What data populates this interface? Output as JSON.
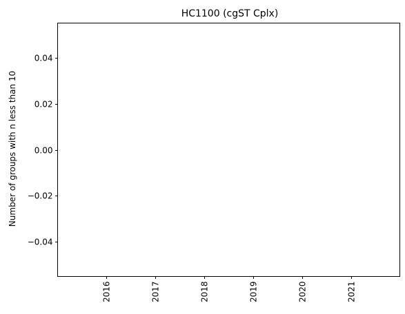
{
  "chart_data": {
    "type": "bar",
    "title": "HC1100 (cgST Cplx)",
    "xlabel": "",
    "ylabel": "Number of groups with n less than 10",
    "categories": [
      "2016",
      "2017",
      "2018",
      "2019",
      "2020",
      "2021"
    ],
    "values": [
      0,
      0,
      0,
      0,
      0,
      0
    ],
    "ylim": [
      -0.055,
      0.055
    ],
    "yticks": [
      -0.04,
      -0.02,
      0.0,
      0.02,
      0.04
    ],
    "ytick_labels": [
      "−0.04",
      "−0.02",
      "0.00",
      "0.02",
      "0.04"
    ],
    "xtick_rotation": "vertical",
    "grid": false,
    "legend": "none"
  }
}
